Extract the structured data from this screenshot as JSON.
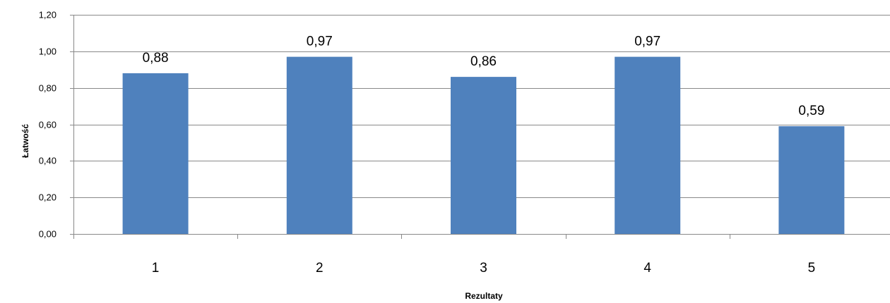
{
  "chart_data": {
    "type": "bar",
    "categories": [
      "1",
      "2",
      "3",
      "4",
      "5"
    ],
    "series": [
      {
        "values": [
          0.88,
          0.97,
          0.86,
          0.97,
          0.59
        ],
        "data_labels": [
          "0,88",
          "0,97",
          "0,86",
          "0,97",
          "0,59"
        ]
      }
    ],
    "xlabel": "Rezultaty",
    "ylabel": "Łatwość",
    "ylim": [
      0,
      1.2
    ],
    "y_ticks": [
      0,
      0.2,
      0.4,
      0.6,
      0.8,
      1.0,
      1.2
    ],
    "y_tick_labels": [
      "0,00",
      "0,20",
      "0,40",
      "0,60",
      "0,80",
      "1,00",
      "1,20"
    ],
    "grid": true,
    "legend": "none",
    "bar_color": "#4f81bd",
    "grid_color": "#898989"
  }
}
